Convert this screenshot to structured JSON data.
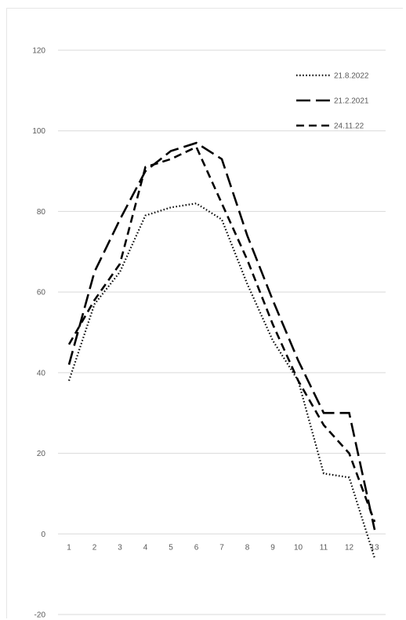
{
  "chart_data": {
    "type": "line",
    "x": [
      1,
      2,
      3,
      4,
      5,
      6,
      7,
      8,
      9,
      10,
      11,
      12,
      13
    ],
    "x_tick_labels": [
      "1",
      "2",
      "3",
      "4",
      "5",
      "6",
      "7",
      "8",
      "9",
      "10",
      "11",
      "12",
      "13"
    ],
    "ylim": [
      -20,
      120
    ],
    "y_ticks": [
      120,
      100,
      80,
      60,
      40,
      20,
      0,
      -20
    ],
    "grid": "horizontal",
    "legend_position": "top-right",
    "series": [
      {
        "name": "21.8.2022",
        "style": "dotted",
        "values": [
          38,
          57,
          65,
          79,
          81,
          82,
          78,
          62,
          48,
          38,
          15,
          14,
          -6
        ]
      },
      {
        "name": "21.2.2021",
        "style": "long-dash",
        "values": [
          42,
          65,
          78,
          90,
          95,
          97,
          93,
          74,
          58,
          43,
          30,
          30,
          1
        ]
      },
      {
        "name": "24.11.22",
        "style": "dash",
        "values": [
          47,
          58,
          67,
          91,
          93,
          96,
          82,
          68,
          52,
          38,
          27,
          20,
          3
        ]
      }
    ],
    "colors": {
      "line": "#000000",
      "grid": "#d9d9d9",
      "text": "#595959"
    }
  }
}
